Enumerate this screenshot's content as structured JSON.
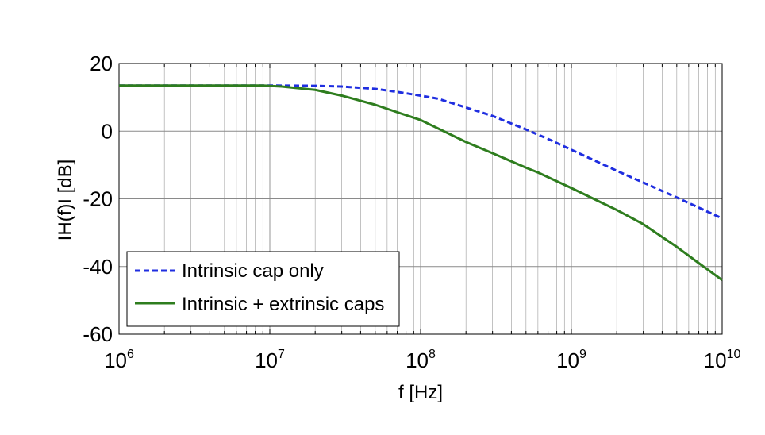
{
  "chart_data": {
    "type": "line",
    "xlabel": "f [Hz]",
    "ylabel": "IH(f)I [dB]",
    "xscale": "log",
    "xlim": [
      1000000,
      10000000000
    ],
    "ylim": [
      -60,
      20
    ],
    "grid": true,
    "legend_position": "lower-left",
    "x_ticks": [
      {
        "value": 1000000,
        "base": "10",
        "exp": "6"
      },
      {
        "value": 10000000,
        "base": "10",
        "exp": "7"
      },
      {
        "value": 100000000,
        "base": "10",
        "exp": "8"
      },
      {
        "value": 1000000000,
        "base": "10",
        "exp": "9"
      },
      {
        "value": 10000000000,
        "base": "10",
        "exp": "10"
      }
    ],
    "y_ticks": [
      {
        "value": 20,
        "label": "20"
      },
      {
        "value": 0,
        "label": "0"
      },
      {
        "value": -20,
        "label": "-20"
      },
      {
        "value": -40,
        "label": "-40"
      },
      {
        "value": -60,
        "label": "-60"
      }
    ],
    "series": [
      {
        "name": "Intrinsic cap only",
        "color": "#1f2ee0",
        "dash": "dashed",
        "x": [
          1000000,
          5000000,
          10000000,
          20000000,
          30000000,
          50000000,
          70000000,
          100000000,
          130000000,
          200000000,
          300000000,
          500000000,
          700000000,
          1000000000,
          2000000000,
          3000000000,
          5000000000,
          7000000000,
          10000000000
        ],
        "y": [
          13.5,
          13.5,
          13.5,
          13.4,
          13.2,
          12.5,
          11.6,
          10.5,
          9.6,
          7.0,
          4.5,
          0.5,
          -2.3,
          -5.5,
          -11.7,
          -15.2,
          -19.6,
          -22.6,
          -25.8
        ]
      },
      {
        "name": "Intrinsic + extrinsic caps",
        "color": "#2e7d1e",
        "dash": "solid",
        "x": [
          1000000,
          5000000,
          9000000,
          12000000,
          20000000,
          30000000,
          50000000,
          70000000,
          100000000,
          150000000,
          200000000,
          300000000,
          500000000,
          600000000,
          1000000000,
          2000000000,
          3000000000,
          5000000000,
          7000000000,
          10000000000
        ],
        "y": [
          13.5,
          13.5,
          13.5,
          13.2,
          12.2,
          10.5,
          7.8,
          5.6,
          3.3,
          -0.5,
          -3.2,
          -6.5,
          -10.8,
          -12.2,
          -16.8,
          -23.3,
          -27.5,
          -34.2,
          -39.0,
          -44.0
        ]
      }
    ]
  }
}
